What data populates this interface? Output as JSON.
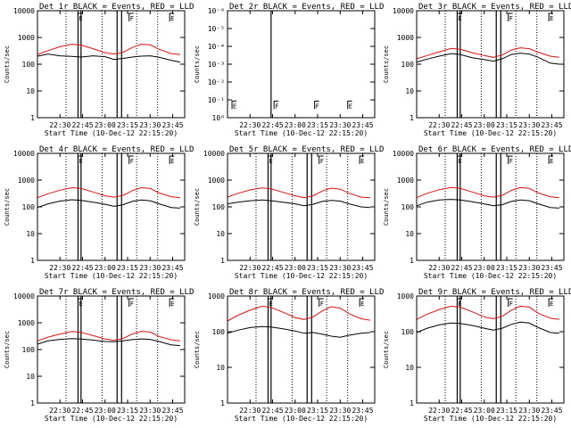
{
  "chart_data": {
    "type": "line",
    "layout": "3x3 grid",
    "x_ticks": [
      "22:30",
      "22:45",
      "23:00",
      "23:15",
      "23:30",
      "23:45"
    ],
    "x_tick_minutes": [
      30,
      45,
      60,
      75,
      90,
      105
    ],
    "xlim_minutes": [
      15,
      113
    ],
    "xlabel": "Start Time (10-Dec-12 22:15:20)",
    "ylabel": "Counts/sec",
    "log_y": true,
    "colors": {
      "events": "#000000",
      "lld": "#e01010",
      "flag": "#000000"
    },
    "dotted_minutes": [
      34,
      58,
      81,
      95
    ],
    "solid_minutes": [
      42,
      44,
      68,
      71
    ],
    "flags": [
      {
        "minute": 42,
        "label": "E"
      },
      {
        "minute": 76,
        "label": "F"
      },
      {
        "minute": 103,
        "label": "E"
      }
    ],
    "panels": [
      {
        "title": "Det 1r BLACK = Events, RED = LLD",
        "ylim": [
          1,
          10000
        ],
        "y_ticks": [
          "1",
          "10",
          "100",
          "1000",
          "10000"
        ],
        "events": {
          "x": [
            15,
            22,
            30,
            38,
            44,
            52,
            60,
            66,
            72,
            78,
            84,
            90,
            96,
            104,
            110
          ],
          "y": [
            200,
            240,
            205,
            195,
            185,
            205,
            190,
            150,
            165,
            185,
            200,
            205,
            180,
            140,
            120
          ]
        },
        "lld": {
          "x": [
            15,
            22,
            30,
            38,
            44,
            52,
            60,
            66,
            72,
            78,
            84,
            90,
            96,
            104,
            110
          ],
          "y": [
            230,
            320,
            450,
            560,
            520,
            380,
            270,
            240,
            280,
            420,
            560,
            530,
            360,
            250,
            230
          ]
        }
      },
      {
        "title": "Det 2r BLACK = Events, RED = LLD",
        "ylim": [
          1,
          1e-06
        ],
        "y_ticks": [
          "10⁰",
          "10⁻¹",
          "10⁻²",
          "10⁻³",
          "10⁻⁴",
          "10⁻⁵",
          "10⁻⁶"
        ],
        "events": {
          "x": [],
          "y": []
        },
        "lld": {
          "x": [],
          "y": []
        },
        "solid_minutes": [
          44
        ],
        "flags": [
          {
            "minute": 18,
            "label": "E"
          },
          {
            "minute": 46,
            "label": "F"
          },
          {
            "minute": 73,
            "label": "F"
          },
          {
            "minute": 95,
            "label": "E"
          }
        ]
      },
      {
        "title": "Det 3r BLACK = Events, RED = LLD",
        "ylim": [
          1,
          10000
        ],
        "y_ticks": [
          "1",
          "10",
          "100",
          "1000",
          "10000"
        ],
        "events": {
          "x": [
            15,
            22,
            30,
            38,
            44,
            52,
            60,
            66,
            72,
            78,
            84,
            90,
            96,
            104,
            110
          ],
          "y": [
            120,
            155,
            200,
            250,
            230,
            175,
            150,
            130,
            160,
            230,
            260,
            240,
            180,
            110,
            100
          ]
        },
        "lld": {
          "x": [
            15,
            22,
            30,
            38,
            44,
            52,
            60,
            66,
            72,
            78,
            84,
            90,
            96,
            104,
            110
          ],
          "y": [
            160,
            210,
            290,
            390,
            360,
            270,
            210,
            180,
            220,
            340,
            410,
            380,
            280,
            200,
            180
          ]
        }
      },
      {
        "title": "Det 4r BLACK = Events, RED = LLD",
        "ylim": [
          1,
          10000
        ],
        "y_ticks": [
          "1",
          "10",
          "100",
          "1000",
          "10000"
        ],
        "events": {
          "x": [
            15,
            22,
            30,
            38,
            44,
            52,
            60,
            66,
            72,
            78,
            84,
            90,
            96,
            104,
            110
          ],
          "y": [
            95,
            130,
            165,
            185,
            175,
            150,
            125,
            105,
            120,
            160,
            180,
            170,
            130,
            95,
            90
          ]
        },
        "lld": {
          "x": [
            15,
            22,
            30,
            38,
            44,
            52,
            60,
            66,
            72,
            78,
            84,
            90,
            96,
            104,
            110
          ],
          "y": [
            220,
            310,
            420,
            520,
            490,
            360,
            260,
            230,
            270,
            400,
            520,
            490,
            330,
            240,
            220
          ]
        }
      },
      {
        "title": "Det 5r BLACK = Events, RED = LLD",
        "ylim": [
          1,
          10000
        ],
        "y_ticks": [
          "1",
          "10",
          "100",
          "1000",
          "10000"
        ],
        "events": {
          "x": [
            15,
            22,
            30,
            38,
            44,
            52,
            60,
            66,
            72,
            78,
            84,
            90,
            96,
            104,
            110
          ],
          "y": [
            130,
            150,
            170,
            180,
            170,
            150,
            130,
            110,
            125,
            160,
            175,
            165,
            130,
            100,
            95
          ]
        },
        "lld": {
          "x": [
            15,
            22,
            30,
            38,
            44,
            52,
            60,
            66,
            72,
            78,
            84,
            90,
            96,
            104,
            110
          ],
          "y": [
            230,
            320,
            430,
            510,
            470,
            350,
            260,
            220,
            260,
            390,
            500,
            460,
            320,
            230,
            220
          ]
        }
      },
      {
        "title": "Det 6r BLACK = Events, RED = LLD",
        "ylim": [
          1,
          10000
        ],
        "y_ticks": [
          "1",
          "10",
          "100",
          "1000",
          "10000"
        ],
        "events": {
          "x": [
            15,
            22,
            30,
            38,
            44,
            52,
            60,
            66,
            72,
            78,
            84,
            90,
            96,
            104,
            110
          ],
          "y": [
            110,
            150,
            180,
            190,
            180,
            155,
            130,
            110,
            120,
            160,
            180,
            170,
            130,
            95,
            90
          ]
        },
        "lld": {
          "x": [
            15,
            22,
            30,
            38,
            44,
            52,
            60,
            66,
            72,
            78,
            84,
            90,
            96,
            104,
            110
          ],
          "y": [
            220,
            320,
            440,
            530,
            490,
            360,
            260,
            230,
            270,
            410,
            530,
            490,
            330,
            240,
            220
          ]
        }
      },
      {
        "title": "Det 7r BLACK = Events, RED = LLD",
        "ylim": [
          1,
          10000
        ],
        "y_ticks": [
          "1",
          "10",
          "100",
          "1000",
          "10000"
        ],
        "events": {
          "x": [
            15,
            22,
            30,
            38,
            44,
            52,
            60,
            66,
            72,
            78,
            84,
            90,
            96,
            104,
            110
          ],
          "y": [
            160,
            210,
            240,
            255,
            245,
            225,
            200,
            195,
            210,
            235,
            250,
            240,
            200,
            150,
            140
          ]
        },
        "lld": {
          "x": [
            15,
            22,
            30,
            38,
            44,
            52,
            60,
            66,
            72,
            78,
            84,
            90,
            96,
            104,
            110
          ],
          "y": [
            210,
            290,
            380,
            470,
            440,
            330,
            250,
            220,
            260,
            380,
            480,
            450,
            310,
            230,
            210
          ]
        }
      },
      {
        "title": "Det 8r BLACK = Events, RED = LLD",
        "ylim": [
          1,
          1000
        ],
        "y_ticks": [
          "1",
          "10",
          "100",
          "1000"
        ],
        "events": {
          "x": [
            15,
            22,
            30,
            38,
            44,
            52,
            60,
            66,
            72,
            78,
            84,
            90,
            96,
            104,
            110
          ],
          "y": [
            90,
            110,
            130,
            140,
            135,
            120,
            105,
            90,
            95,
            85,
            75,
            70,
            80,
            90,
            95
          ]
        },
        "lld": {
          "x": [
            15,
            22,
            30,
            38,
            44,
            52,
            60,
            66,
            72,
            78,
            84,
            90,
            96,
            104,
            110
          ],
          "y": [
            200,
            290,
            400,
            520,
            480,
            350,
            250,
            220,
            260,
            380,
            500,
            460,
            320,
            230,
            210
          ]
        }
      },
      {
        "title": "Det 9r BLACK = Events, RED = LLD",
        "ylim": [
          1,
          1000
        ],
        "y_ticks": [
          "1",
          "10",
          "100",
          "1000"
        ],
        "events": {
          "x": [
            15,
            22,
            30,
            38,
            44,
            52,
            60,
            66,
            72,
            78,
            84,
            90,
            96,
            104,
            110
          ],
          "y": [
            95,
            125,
            155,
            175,
            170,
            150,
            125,
            110,
            125,
            160,
            185,
            175,
            130,
            95,
            90
          ]
        },
        "lld": {
          "x": [
            15,
            22,
            30,
            38,
            44,
            52,
            60,
            66,
            72,
            78,
            84,
            90,
            96,
            104,
            110
          ],
          "y": [
            220,
            310,
            420,
            520,
            490,
            360,
            260,
            230,
            270,
            400,
            520,
            490,
            330,
            240,
            220
          ]
        }
      }
    ]
  }
}
